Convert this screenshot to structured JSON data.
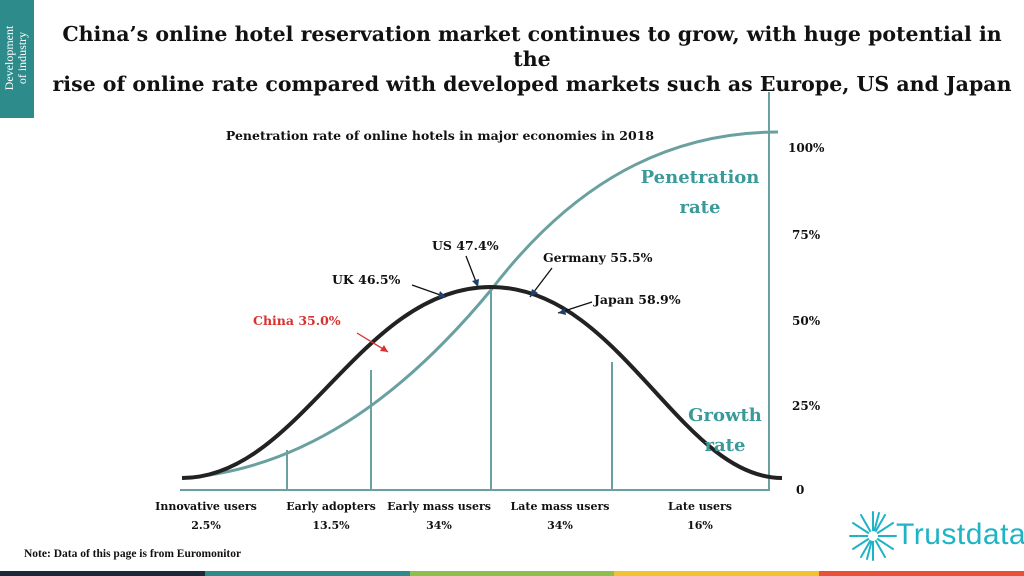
{
  "section_tab": {
    "line1": "Development",
    "line2": "of industry"
  },
  "headline": {
    "line1": "China’s online hotel reservation market continues to grow, with huge potential in the",
    "line2": "rise of online rate compared with developed markets such as Europe, US and Japan"
  },
  "chart_data": {
    "type": "line",
    "subtitle": "Penetration rate of online hotels in major economies in 2018",
    "y_ticks": [
      "100%",
      "75%",
      "50%",
      "25%",
      "0"
    ],
    "ylim": [
      0,
      100
    ],
    "series": [
      {
        "name": "Penetration rate",
        "name_line1": "Penetration",
        "name_line2": "rate",
        "color": "#6aa0a0"
      },
      {
        "name": "Growth rate",
        "name_line1": "Growth",
        "name_line2": "rate",
        "color": "#222222"
      }
    ],
    "adopter_segments": [
      {
        "label": "Innovative users",
        "share": "2.5%"
      },
      {
        "label": "Early adopters",
        "share": "13.5%"
      },
      {
        "label": "Early mass users",
        "share": "34%"
      },
      {
        "label": "Late mass users",
        "share": "34%"
      },
      {
        "label": "Late users",
        "share": "16%"
      }
    ],
    "country_markers": [
      {
        "country": "China",
        "label": "China 35.0%",
        "value": 35.0,
        "color": "#d93030"
      },
      {
        "country": "UK",
        "label": "UK 46.5%",
        "value": 46.5,
        "color": "#111111"
      },
      {
        "country": "US",
        "label": "US 47.4%",
        "value": 47.4,
        "color": "#111111"
      },
      {
        "country": "Germany",
        "label": "Germany 55.5%",
        "value": 55.5,
        "color": "#111111"
      },
      {
        "country": "Japan",
        "label": "Japan 58.9%",
        "value": 58.9,
        "color": "#111111"
      }
    ],
    "grid": false
  },
  "note": "Note: Data of this page is from Euromonitor",
  "brand": {
    "name": "Trustdata",
    "icon": "sunburst-logo-icon",
    "color": "#1fb3c6"
  },
  "footer_colors": [
    "#1b2a3a",
    "#2e8b8b",
    "#8cc04a",
    "#f2c230",
    "#e8503a"
  ]
}
